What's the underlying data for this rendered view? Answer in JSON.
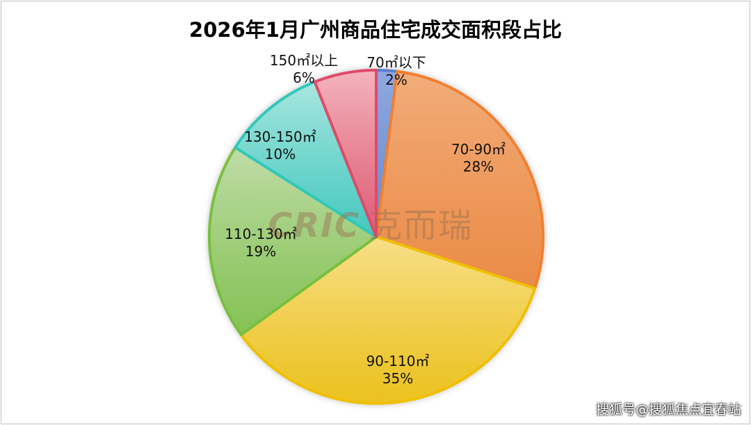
{
  "chart_data": {
    "type": "pie",
    "title": "2026年1月广州商品住宅成交面积段占比",
    "start": "12 o'clock, clockwise",
    "slices": [
      {
        "label": "70㎡以下",
        "value": 2,
        "pct": "2%",
        "fill": "#8fa8e0",
        "stroke": "#5b7fd0"
      },
      {
        "label": "70-90㎡",
        "value": 28,
        "pct": "28%",
        "fill": "#f2ad7a",
        "stroke": "#f08030"
      },
      {
        "label": "90-110㎡",
        "value": 35,
        "pct": "35%",
        "fill": "#f8df8a",
        "stroke": "#f0c000"
      },
      {
        "label": "110-130㎡",
        "value": 19,
        "pct": "19%",
        "fill": "#c0dca8",
        "stroke": "#78c040"
      },
      {
        "label": "130-150㎡",
        "value": 10,
        "pct": "10%",
        "fill": "#a8e6df",
        "stroke": "#30c8bc"
      },
      {
        "label": "150㎡以上",
        "value": 6,
        "pct": "6%",
        "fill": "#f4b4bc",
        "stroke": "#e04a68"
      }
    ]
  },
  "watermark": {
    "logo_text": "CRIC",
    "logo_cn": "克而瑞",
    "source": "搜狐号@搜狐焦点宜春站"
  }
}
